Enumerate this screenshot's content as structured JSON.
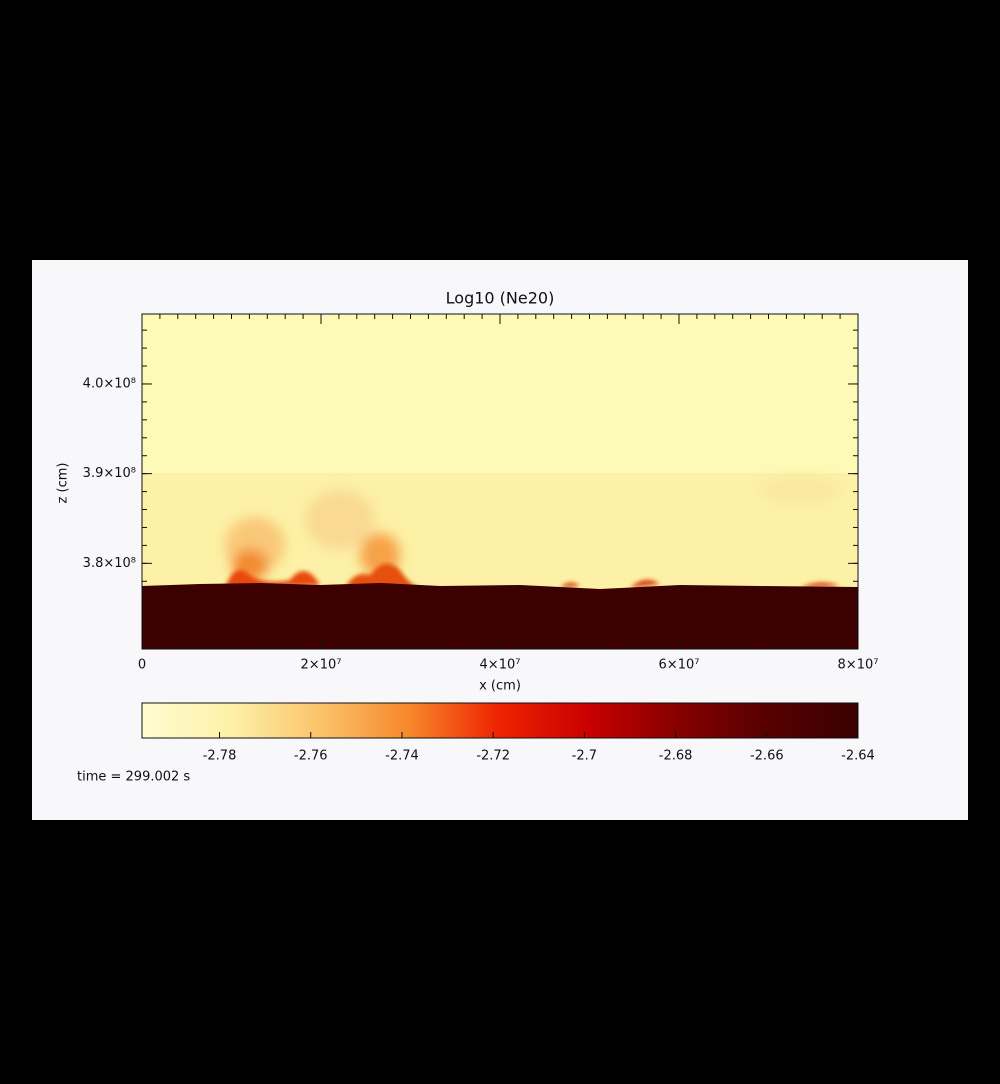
{
  "chart_data": {
    "type": "heatmap",
    "title": "Log10 (Ne20)",
    "x_label": "x (cm)",
    "y_label": "z (cm)",
    "xlim": [
      0,
      80000000
    ],
    "xticks": [
      0,
      {
        "value": 20000000,
        "label": "2×10⁷"
      },
      {
        "value": 40000000,
        "label": "4×10⁷"
      },
      {
        "value": 60000000,
        "label": "6×10⁷"
      },
      {
        "value": 80000000,
        "label": "8×10⁷"
      }
    ],
    "ylim": [
      370450000,
      407800000
    ],
    "yticks": [
      {
        "value": 380000000,
        "label": "3.8×10⁸"
      },
      {
        "value": 390000000,
        "label": "3.9×10⁸"
      },
      {
        "value": 400000000,
        "label": "4.0×10⁸"
      }
    ],
    "colorbar": {
      "lim": [
        -2.797,
        -2.64
      ],
      "ticks": [
        -2.78,
        -2.76,
        -2.74,
        -2.72,
        -2.7,
        -2.68,
        -2.66,
        -2.64
      ],
      "colormap": [
        "#fffccf",
        "#fdf0a8",
        "#fbc36a",
        "#f7862a",
        "#ee2200",
        "#c80000",
        "#860000",
        "#560000",
        "#3a0000"
      ]
    },
    "annotation": "time = 299.002 s"
  }
}
